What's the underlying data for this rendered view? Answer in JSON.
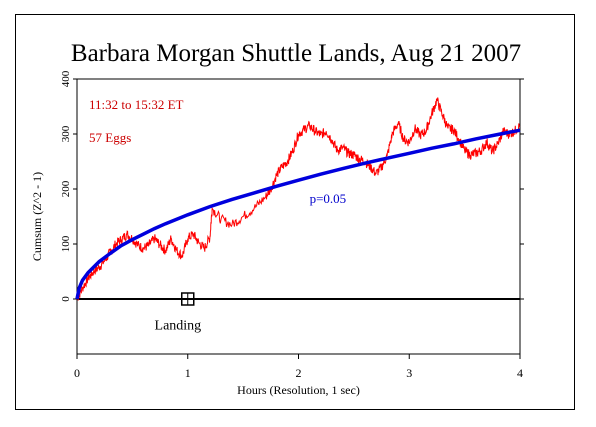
{
  "chart_data": {
    "type": "line",
    "title": "Barbara Morgan Shuttle Lands, Aug 21 2007",
    "xlabel": "Hours (Resolution, 1 sec)",
    "ylabel": "Cumsum (Z^2 - 1)",
    "xlim": [
      0,
      4
    ],
    "ylim": [
      -100,
      400
    ],
    "x_ticks": [
      "0",
      "1",
      "2",
      "3",
      "4"
    ],
    "y_ticks": [
      "0",
      "100",
      "200",
      "300",
      "400"
    ],
    "annotations": {
      "time_range": "11:32 to 15:32 ET",
      "eggs": "57 Eggs",
      "p_label": "p=0.05",
      "event_label": "Landing"
    },
    "event": {
      "x": 1.0,
      "y": 0
    },
    "series": [
      {
        "values": [
          [
            0,
            0
          ],
          [
            0.05,
            20
          ],
          [
            0.1,
            38
          ],
          [
            0.15,
            50
          ],
          [
            0.2,
            58
          ],
          [
            0.25,
            70
          ],
          [
            0.3,
            85
          ],
          [
            0.35,
            100
          ],
          [
            0.4,
            108
          ],
          [
            0.45,
            118
          ],
          [
            0.5,
            110
          ],
          [
            0.55,
            98
          ],
          [
            0.6,
            92
          ],
          [
            0.65,
            98
          ],
          [
            0.7,
            110
          ],
          [
            0.75,
            98
          ],
          [
            0.8,
            88
          ],
          [
            0.85,
            110
          ],
          [
            0.9,
            88
          ],
          [
            0.95,
            78
          ],
          [
            1.0,
            110
          ],
          [
            1.05,
            118
          ],
          [
            1.1,
            102
          ],
          [
            1.15,
            92
          ],
          [
            1.2,
            112
          ],
          [
            1.22,
            165
          ],
          [
            1.3,
            145
          ],
          [
            1.4,
            135
          ],
          [
            1.5,
            150
          ],
          [
            1.6,
            165
          ],
          [
            1.7,
            185
          ],
          [
            1.75,
            200
          ],
          [
            1.8,
            225
          ],
          [
            1.85,
            240
          ],
          [
            1.9,
            250
          ],
          [
            1.95,
            270
          ],
          [
            2.0,
            300
          ],
          [
            2.05,
            308
          ],
          [
            2.1,
            315
          ],
          [
            2.15,
            305
          ],
          [
            2.2,
            298
          ],
          [
            2.25,
            305
          ],
          [
            2.3,
            290
          ],
          [
            2.35,
            270
          ],
          [
            2.4,
            275
          ],
          [
            2.45,
            265
          ],
          [
            2.5,
            262
          ],
          [
            2.55,
            255
          ],
          [
            2.6,
            250
          ],
          [
            2.65,
            240
          ],
          [
            2.7,
            228
          ],
          [
            2.75,
            240
          ],
          [
            2.8,
            260
          ],
          [
            2.85,
            302
          ],
          [
            2.9,
            320
          ],
          [
            2.95,
            290
          ],
          [
            3.0,
            285
          ],
          [
            3.05,
            310
          ],
          [
            3.1,
            298
          ],
          [
            3.15,
            305
          ],
          [
            3.2,
            335
          ],
          [
            3.25,
            362
          ],
          [
            3.3,
            335
          ],
          [
            3.35,
            310
          ],
          [
            3.4,
            308
          ],
          [
            3.45,
            290
          ],
          [
            3.5,
            270
          ],
          [
            3.55,
            262
          ],
          [
            3.6,
            265
          ],
          [
            3.65,
            270
          ],
          [
            3.7,
            285
          ],
          [
            3.75,
            268
          ],
          [
            3.8,
            282
          ],
          [
            3.85,
            305
          ],
          [
            3.9,
            300
          ],
          [
            3.95,
            305
          ],
          [
            4.0,
            315
          ]
        ],
        "color": "#ff0000"
      },
      {
        "values": [
          [
            0,
            0
          ],
          [
            0.02,
            20
          ],
          [
            0.05,
            34
          ],
          [
            0.1,
            48
          ],
          [
            0.2,
            68
          ],
          [
            0.3,
            83
          ],
          [
            0.4,
            97
          ],
          [
            0.5,
            108
          ],
          [
            0.6,
            118
          ],
          [
            0.7,
            128
          ],
          [
            0.8,
            137
          ],
          [
            1.0,
            153
          ],
          [
            1.2,
            168
          ],
          [
            1.4,
            181
          ],
          [
            1.6,
            193
          ],
          [
            1.8,
            205
          ],
          [
            2.0,
            216
          ],
          [
            2.2,
            227
          ],
          [
            2.4,
            237
          ],
          [
            2.6,
            247
          ],
          [
            2.8,
            256
          ],
          [
            3.0,
            265
          ],
          [
            3.2,
            274
          ],
          [
            3.4,
            282
          ],
          [
            3.6,
            291
          ],
          [
            3.8,
            299
          ],
          [
            4.0,
            307
          ]
        ],
        "color": "#0000dd"
      }
    ],
    "grid": false
  }
}
